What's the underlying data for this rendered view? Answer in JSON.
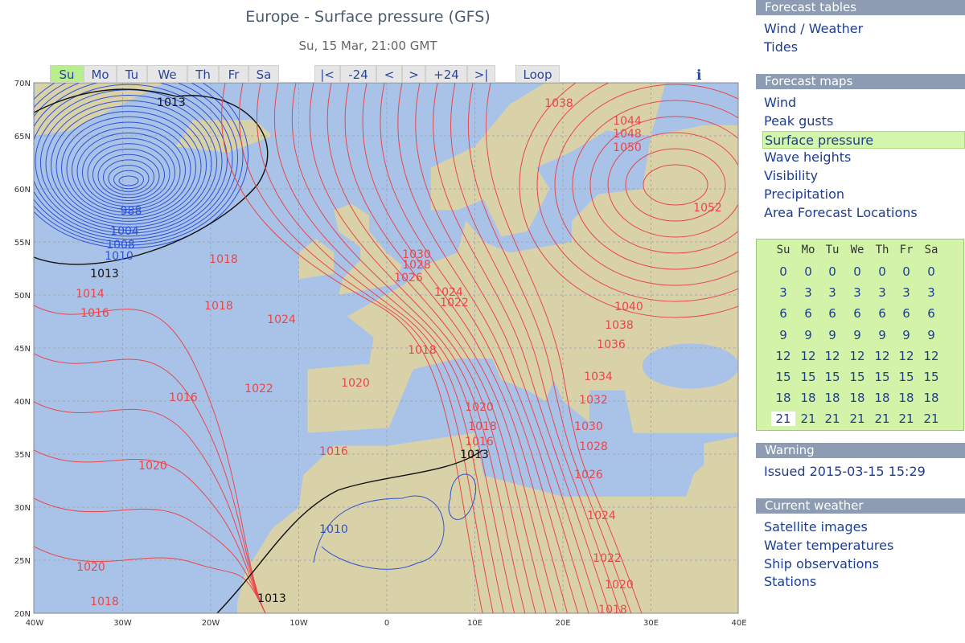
{
  "header": {
    "title": "Europe - Surface pressure (GFS)",
    "subtitle": "Su, 15 Mar, 21:00 GMT"
  },
  "nav": {
    "days": [
      "Su",
      "Mo",
      "Tu",
      "We",
      "Th",
      "Fr",
      "Sa"
    ],
    "steps": [
      "|<",
      "-24",
      "<",
      ">",
      "+24",
      ">|"
    ],
    "loop": "Loop",
    "info": "i"
  },
  "map": {
    "lat_labels": [
      "70N",
      "65N",
      "60N",
      "55N",
      "50N",
      "45N",
      "40N",
      "35N",
      "30N",
      "25N",
      "20N"
    ],
    "lon_labels": [
      "40W",
      "30W",
      "20W",
      "10W",
      "0",
      "10E",
      "20E",
      "30E",
      "40E"
    ],
    "contour_labels": [
      "1013",
      "988",
      "1004",
      "1008",
      "1010",
      "1013",
      "1018",
      "1014",
      "1016",
      "1018",
      "1024",
      "1016",
      "1022",
      "1020",
      "1020",
      "1016",
      "1020",
      "1018",
      "1010",
      "1013",
      "1013",
      "1030",
      "1028",
      "1026",
      "1024",
      "1022",
      "1018",
      "1020",
      "1018",
      "1016",
      "1038",
      "1044",
      "1048",
      "1050",
      "1052",
      "1040",
      "1038",
      "1036",
      "1034",
      "1032",
      "1030",
      "1028",
      "1026",
      "1024",
      "1022",
      "1020",
      "1018"
    ]
  },
  "sidebar": {
    "forecast_tables": {
      "title": "Forecast tables",
      "links": [
        "Wind / Weather",
        "Tides"
      ]
    },
    "forecast_maps": {
      "title": "Forecast maps",
      "links": [
        "Wind",
        "Peak gusts",
        "Surface pressure",
        "Wave heights",
        "Visibility",
        "Precipitation",
        "Area Forecast Locations"
      ]
    },
    "calendar": {
      "days": [
        "Su",
        "Mo",
        "Tu",
        "We",
        "Th",
        "Fr",
        "Sa"
      ],
      "rows": [
        [
          0,
          0,
          0,
          0,
          0,
          0,
          0
        ],
        [
          3,
          3,
          3,
          3,
          3,
          3,
          3
        ],
        [
          6,
          6,
          6,
          6,
          6,
          6,
          6
        ],
        [
          9,
          9,
          9,
          9,
          9,
          9,
          9
        ],
        [
          12,
          12,
          12,
          12,
          12,
          12,
          12
        ],
        [
          15,
          15,
          15,
          15,
          15,
          15,
          15
        ],
        [
          18,
          18,
          18,
          18,
          18,
          18,
          18
        ],
        [
          21,
          21,
          21,
          21,
          21,
          21,
          21
        ]
      ]
    },
    "warning": {
      "title": "Warning",
      "text": "Issued 2015-03-15 15:29"
    },
    "current_weather": {
      "title": "Current weather",
      "links": [
        "Satellite images",
        "Water temperatures",
        "Ship observations",
        "Stations"
      ]
    }
  }
}
